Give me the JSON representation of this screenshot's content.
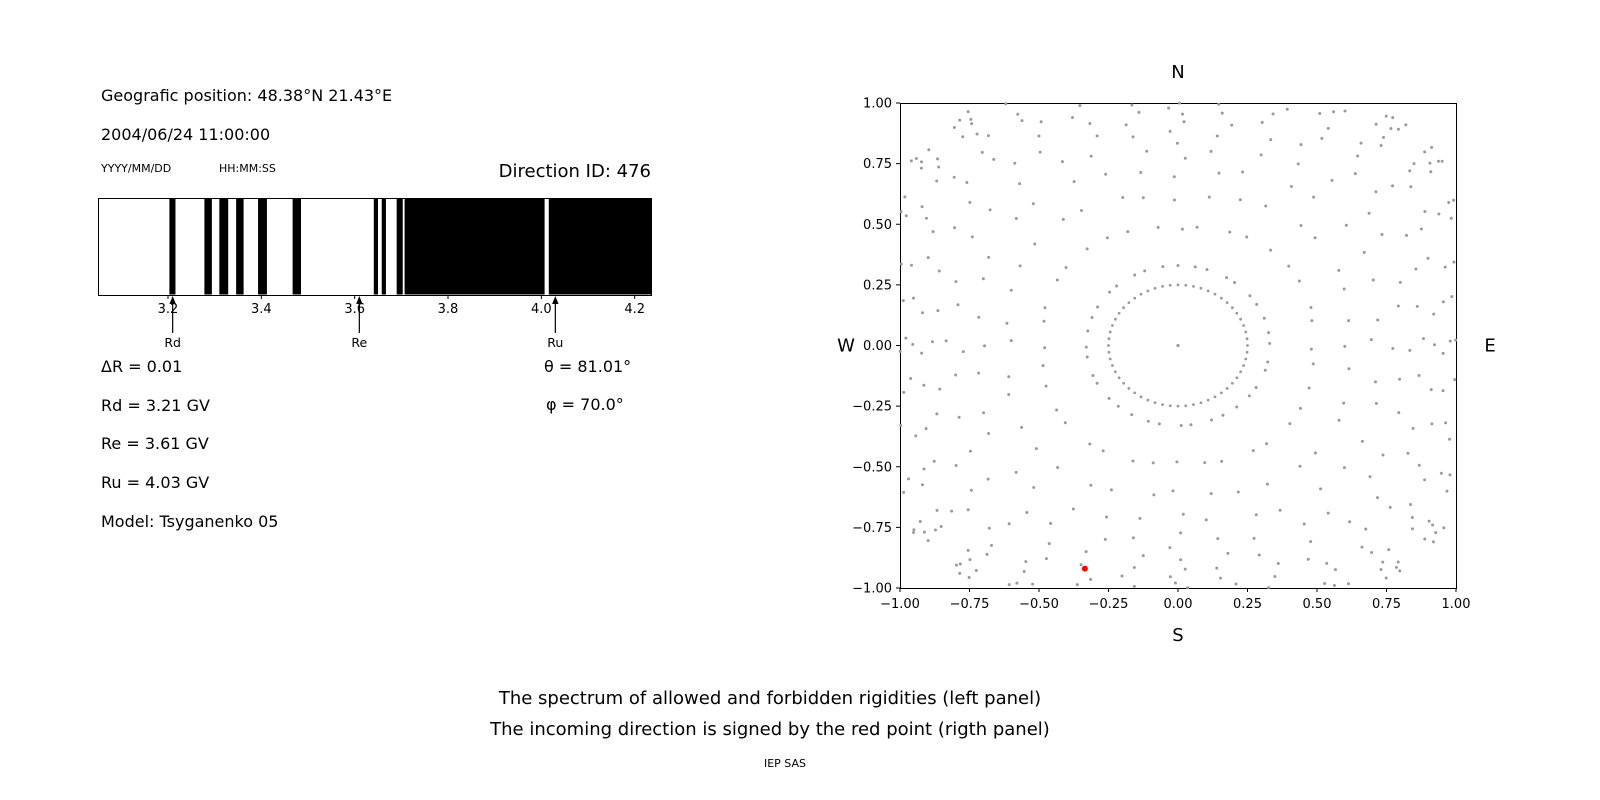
{
  "header": {
    "position": "Geografic position: 48.38°N 21.43°E",
    "datetime": "2004/06/24 11:00:00",
    "date_format": "YYYY/MM/DD",
    "time_format": "HH:MM:SS",
    "direction_id": "Direction ID: 476"
  },
  "left_panel": {
    "delta_r": "ΔR = 0.01",
    "theta": "θ = 81.01°",
    "rd": "Rd = 3.21 GV",
    "phi": "φ = 70.0°",
    "re": "Re = 3.61 GV",
    "ru": "Ru = 4.03 GV",
    "model": "Model: Tsyganenko 05"
  },
  "caption": {
    "line1": "The spectrum of allowed and forbidden rigidities (left panel)",
    "line2": "The incoming direction is signed by the red point (rigth panel)",
    "credit": "IEP SAS"
  },
  "chart_data": [
    {
      "type": "barcode",
      "description": "Rigidity spectrum: black bands are forbidden rigidities, white are allowed (GV)",
      "xlim": [
        3.05,
        4.235
      ],
      "band_color": "#000000",
      "xticks": [
        {
          "label": "3.2",
          "value": 3.2
        },
        {
          "label": "3.4",
          "value": 3.4
        },
        {
          "label": "3.6",
          "value": 3.6
        },
        {
          "label": "3.8",
          "value": 3.8
        },
        {
          "label": "4.0",
          "value": 4.0
        },
        {
          "label": "4.2",
          "value": 4.2
        }
      ],
      "forbidden_bands": [
        [
          3.203,
          3.216
        ],
        [
          3.278,
          3.294
        ],
        [
          3.31,
          3.329
        ],
        [
          3.346,
          3.362
        ],
        [
          3.393,
          3.412
        ],
        [
          3.467,
          3.485
        ],
        [
          3.641,
          3.65
        ],
        [
          3.658,
          3.667
        ],
        [
          3.69,
          3.703
        ],
        [
          3.707,
          4.007
        ],
        [
          4.016,
          4.235
        ]
      ],
      "markers": [
        {
          "label": "Rd",
          "value": 3.21
        },
        {
          "label": "Re",
          "value": 3.61
        },
        {
          "label": "Ru",
          "value": 4.03
        }
      ]
    },
    {
      "type": "scatter",
      "description": "Asymptotic directions map; red point marks the incoming direction",
      "xlim": [
        -1,
        1
      ],
      "ylim": [
        -1,
        1
      ],
      "xticks": [
        {
          "label": "−1.00",
          "value": -1.0
        },
        {
          "label": "−0.75",
          "value": -0.75
        },
        {
          "label": "−0.50",
          "value": -0.5
        },
        {
          "label": "−0.25",
          "value": -0.25
        },
        {
          "label": "0.00",
          "value": 0.0
        },
        {
          "label": "0.25",
          "value": 0.25
        },
        {
          "label": "0.50",
          "value": 0.5
        },
        {
          "label": "0.75",
          "value": 0.75
        },
        {
          "label": "1.00",
          "value": 1.0
        }
      ],
      "yticks": [
        {
          "label": "−1.00",
          "value": -1.0
        },
        {
          "label": "−0.75",
          "value": -0.75
        },
        {
          "label": "−0.50",
          "value": -0.5
        },
        {
          "label": "−0.25",
          "value": -0.25
        },
        {
          "label": "0.00",
          "value": 0.0
        },
        {
          "label": "0.25",
          "value": 0.25
        },
        {
          "label": "0.50",
          "value": 0.5
        },
        {
          "label": "0.75",
          "value": 0.75
        },
        {
          "label": "1.00",
          "value": 1.0
        }
      ],
      "compass": {
        "top": "N",
        "bottom": "S",
        "left": "W",
        "right": "E"
      },
      "dot_color": "#9a9a9a",
      "red_point": {
        "x": -0.335,
        "y": -0.92,
        "color": "#ff0000"
      },
      "pattern": {
        "center_dot": true,
        "inner_ring": {
          "radius": 0.25,
          "count": 56
        },
        "rays": {
          "count": 36,
          "r_start": 0.33,
          "decay": 0.8,
          "dots_per_ray": 16,
          "r_limit_base": 1.08,
          "r_limit_var": 0.18
        }
      }
    }
  ]
}
